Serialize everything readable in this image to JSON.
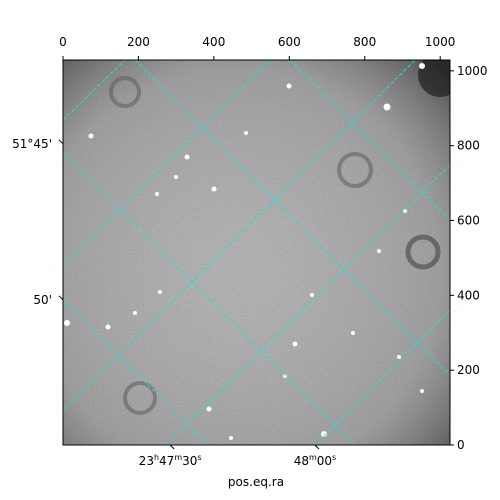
{
  "chart_data": {
    "type": "image",
    "x_label": "pos.eq.ra",
    "xlim": [
      0,
      1026
    ],
    "ylim": [
      0,
      1029
    ],
    "xticks": [
      0,
      200,
      400,
      600,
      800,
      1000
    ],
    "yticks": [
      0,
      200,
      400,
      600,
      800,
      1000
    ],
    "ra_ticks": [
      {
        "value": 284,
        "label": "23h47m30s"
      },
      {
        "value": 668,
        "label": "48m00s"
      }
    ],
    "dec_ticks": [
      {
        "value": 805,
        "label": "51°45'"
      },
      {
        "value": 388,
        "label": "50'"
      }
    ],
    "grid": true,
    "grid_color": "#33d6d6"
  }
}
